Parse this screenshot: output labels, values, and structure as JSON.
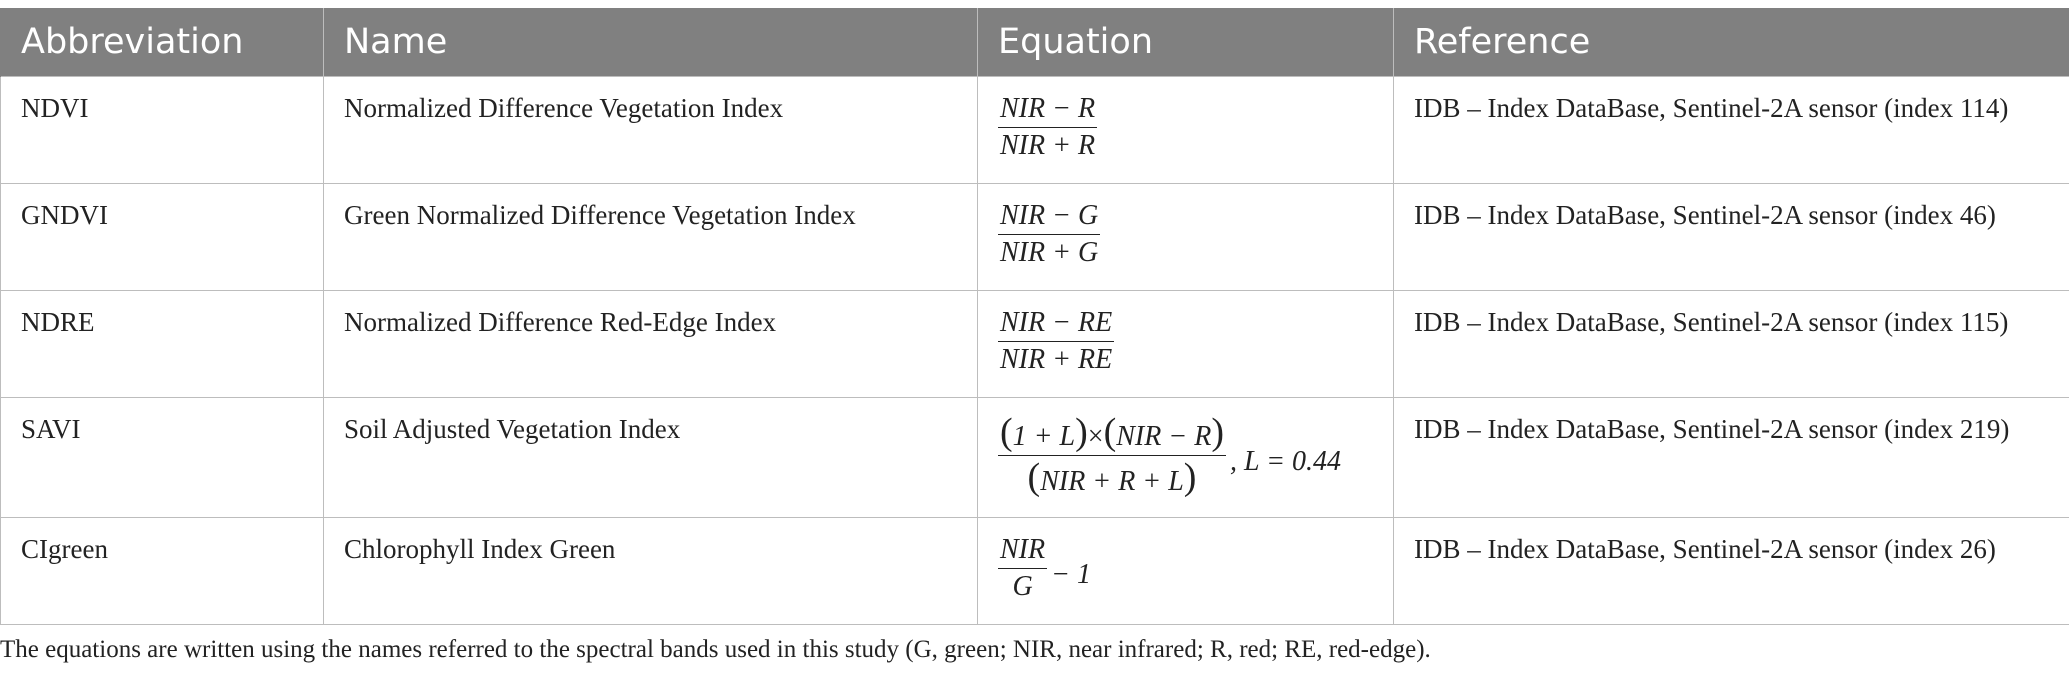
{
  "table": {
    "headers": [
      "Abbreviation",
      "Name",
      "Equation",
      "Reference"
    ],
    "rows": [
      {
        "abbreviation": "NDVI",
        "name": "Normalized Difference Vegetation Index",
        "equation": {
          "numerator": "NIR − R",
          "denominator": "NIR + R"
        },
        "reference": "IDB – Index DataBase, Sentinel-2A sensor (index 114)"
      },
      {
        "abbreviation": "GNDVI",
        "name": "Green Normalized Difference Vegetation Index",
        "equation": {
          "numerator": "NIR − G",
          "denominator": "NIR + G"
        },
        "reference": "IDB – Index DataBase, Sentinel-2A sensor (index 46)"
      },
      {
        "abbreviation": "NDRE",
        "name": "Normalized Difference Red-Edge Index",
        "equation": {
          "numerator": "NIR − RE",
          "denominator": "NIR + RE"
        },
        "reference": "IDB – Index DataBase, Sentinel-2A sensor (index 115)"
      },
      {
        "abbreviation": "SAVI",
        "name": "Soil Adjusted Vegetation Index",
        "equation": {
          "num_a": "1 + L",
          "times": "×",
          "num_b": "NIR − R",
          "denominator": "NIR + R + L",
          "suffix": ", L = 0.44"
        },
        "reference": "IDB – Index DataBase, Sentinel-2A sensor (index 219)"
      },
      {
        "abbreviation": "CIgreen",
        "name": "Chlorophyll Index Green",
        "equation": {
          "numerator": "NIR",
          "denominator": "G",
          "suffix": "− 1"
        },
        "reference": "IDB – Index DataBase, Sentinel-2A sensor (index 26)"
      }
    ]
  },
  "footnote": "The equations are written using the names referred to the spectral bands used in this study (G, green; NIR, near infrared; R, red; RE, red-edge).",
  "colors": {
    "header_bg": "#808080",
    "header_text": "#ffffff",
    "border": "#bdbdbd",
    "body_text": "#222222"
  }
}
